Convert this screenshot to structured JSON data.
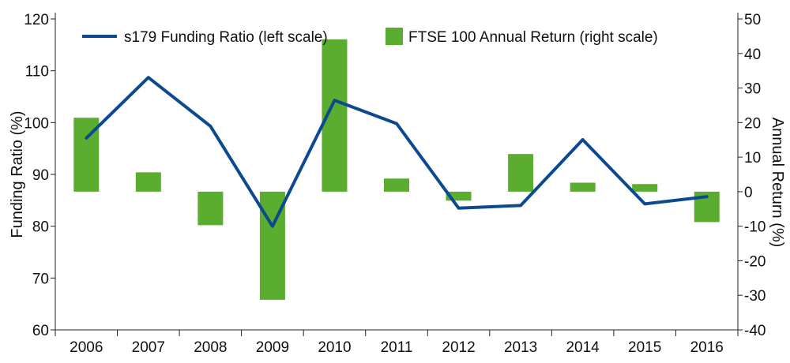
{
  "chart_data": {
    "type": "bar+line",
    "title": "",
    "categories": [
      "2006",
      "2007",
      "2008",
      "2009",
      "2010",
      "2011",
      "2012",
      "2013",
      "2014",
      "2015",
      "2016"
    ],
    "series": [
      {
        "name": "s179 Funding Ratio (left scale)",
        "type": "line",
        "axis": "left",
        "color": "#0b4a8f",
        "values": [
          97,
          108.7,
          99.3,
          80,
          104.3,
          99.8,
          83.5,
          84,
          96.7,
          84.3,
          85.7
        ]
      },
      {
        "name": "FTSE 100 Annual Return (right scale)",
        "type": "bar",
        "axis": "right",
        "color": "#5aad2e",
        "values": [
          21.4,
          5.6,
          -9.7,
          -31.3,
          44.1,
          3.8,
          -2.6,
          10.9,
          2.6,
          2.2,
          -8.8
        ]
      }
    ],
    "left_axis": {
      "label": "Funding Ratio (%)",
      "range": [
        60,
        120
      ],
      "ticks": [
        "60",
        "70",
        "80",
        "90",
        "100",
        "110",
        "120"
      ]
    },
    "right_axis": {
      "label": "Annual Return (%)",
      "range": [
        -40,
        50
      ],
      "ticks": [
        "-40",
        "-30",
        "-20",
        "-10",
        "0",
        "10",
        "20",
        "30",
        "40",
        "50"
      ]
    },
    "legend_position": "top"
  }
}
